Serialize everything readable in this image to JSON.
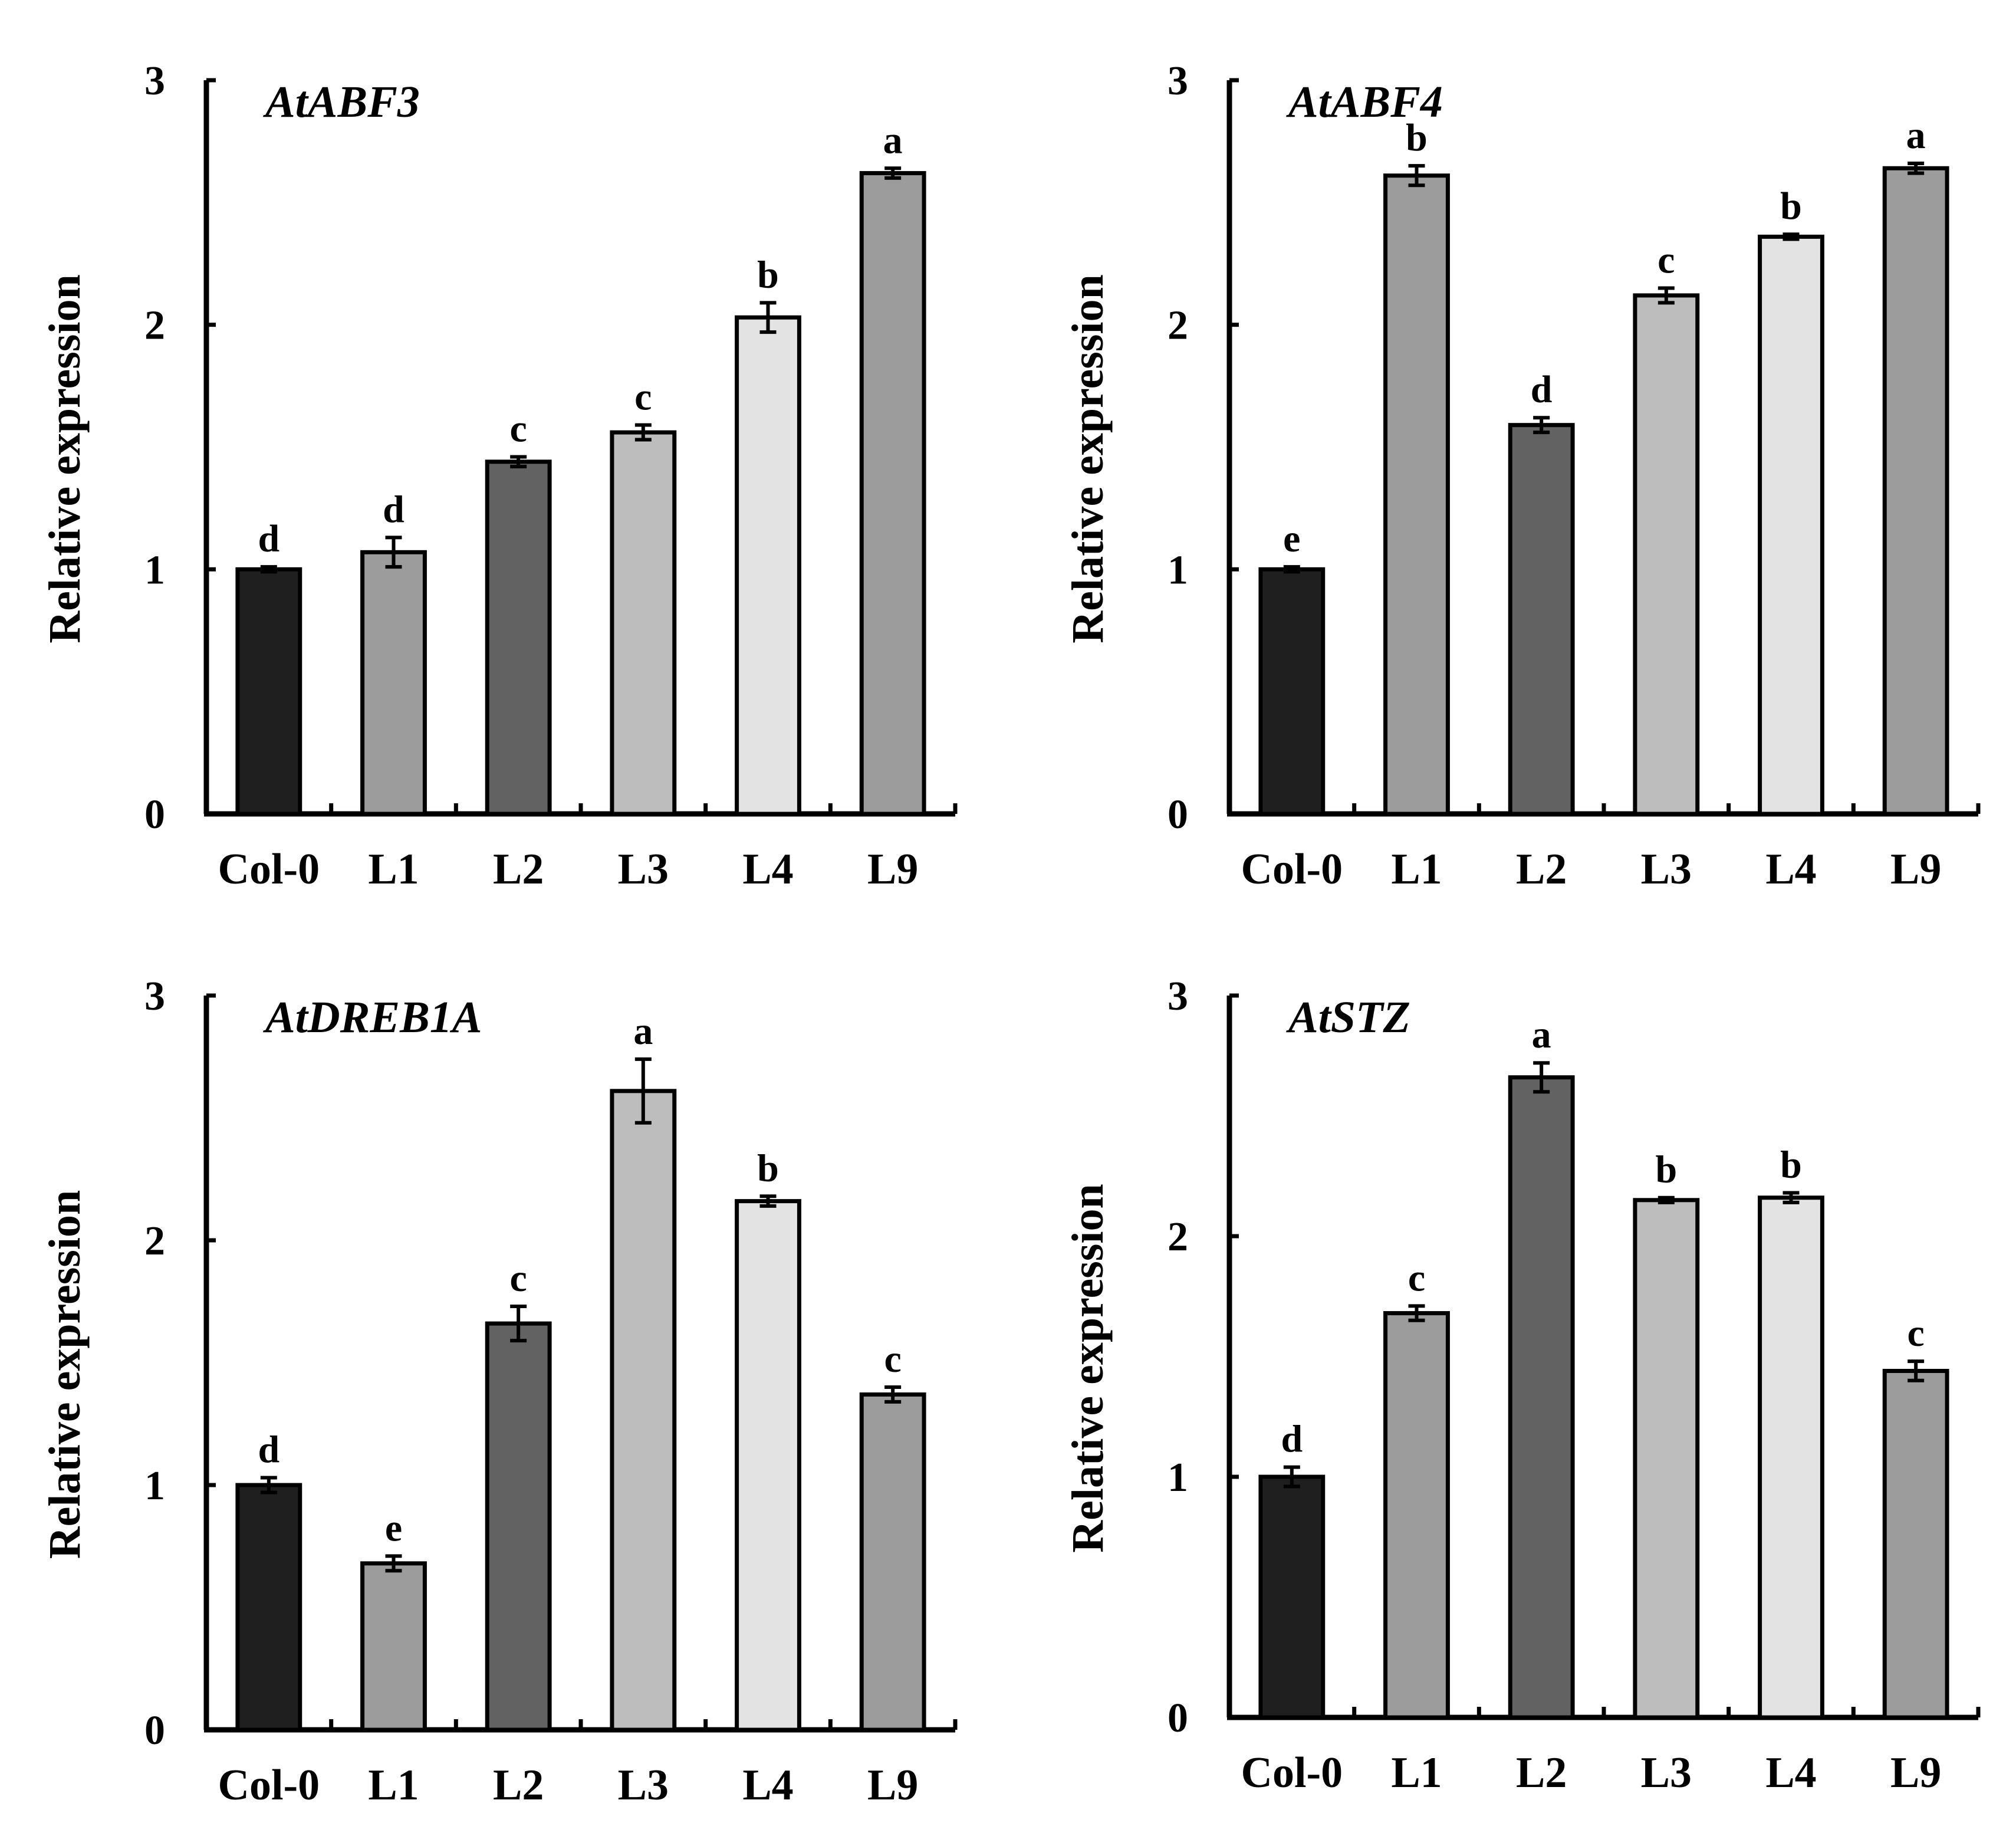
{
  "colors": {
    "axis": "#000000",
    "bar_stroke": "#000000",
    "bar_fills": [
      "#1f1f1f",
      "#9c9c9c",
      "#626262",
      "#bdbdbd",
      "#e3e3e3",
      "#9c9c9c"
    ]
  },
  "chart_data": [
    {
      "type": "bar",
      "title": "AtABF3",
      "ylabel": "Relative expression",
      "xlabel": "",
      "ylim": [
        0,
        3
      ],
      "yticks": [
        "0",
        "1",
        "2",
        "3"
      ],
      "categories": [
        "Col-0",
        "L1",
        "L2",
        "L3",
        "L4",
        "L9"
      ],
      "values": [
        1.0,
        1.07,
        1.44,
        1.56,
        2.03,
        2.62
      ],
      "errors": [
        0.01,
        0.06,
        0.02,
        0.03,
        0.06,
        0.02
      ],
      "significance": [
        "d",
        "d",
        "c",
        "c",
        "b",
        "a"
      ]
    },
    {
      "type": "bar",
      "title": "AtABF4",
      "ylabel": "Relative expression",
      "xlabel": "",
      "ylim": [
        0,
        3
      ],
      "yticks": [
        "0",
        "1",
        "2",
        "3"
      ],
      "categories": [
        "Col-0",
        "L1",
        "L2",
        "L3",
        "L4",
        "L9"
      ],
      "values": [
        1.0,
        2.61,
        1.59,
        2.12,
        2.36,
        2.64
      ],
      "errors": [
        0.01,
        0.04,
        0.03,
        0.03,
        0.01,
        0.02
      ],
      "significance": [
        "e",
        "b",
        "d",
        "c",
        "b",
        "a"
      ]
    },
    {
      "type": "bar",
      "title": "AtDREB1A",
      "ylabel": "Relative expression",
      "xlabel": "",
      "ylim": [
        0,
        3
      ],
      "yticks": [
        "0",
        "1",
        "2",
        "3"
      ],
      "categories": [
        "Col-0",
        "L1",
        "L2",
        "L3",
        "L4",
        "L9"
      ],
      "values": [
        1.0,
        0.68,
        1.66,
        2.61,
        2.16,
        1.37
      ],
      "errors": [
        0.03,
        0.03,
        0.07,
        0.13,
        0.02,
        0.03
      ],
      "significance": [
        "d",
        "e",
        "c",
        "a",
        "b",
        "c"
      ]
    },
    {
      "type": "bar",
      "title": "AtSTZ",
      "ylabel": "Relative expression",
      "xlabel": "",
      "ylim": [
        0,
        3
      ],
      "yticks": [
        "0",
        "1",
        "2",
        "3"
      ],
      "categories": [
        "Col-0",
        "L1",
        "L2",
        "L3",
        "L4",
        "L9"
      ],
      "values": [
        1.0,
        1.68,
        2.66,
        2.15,
        2.16,
        1.44
      ],
      "errors": [
        0.04,
        0.03,
        0.06,
        0.01,
        0.02,
        0.04
      ],
      "significance": [
        "d",
        "c",
        "a",
        "b",
        "b",
        "c"
      ]
    }
  ]
}
